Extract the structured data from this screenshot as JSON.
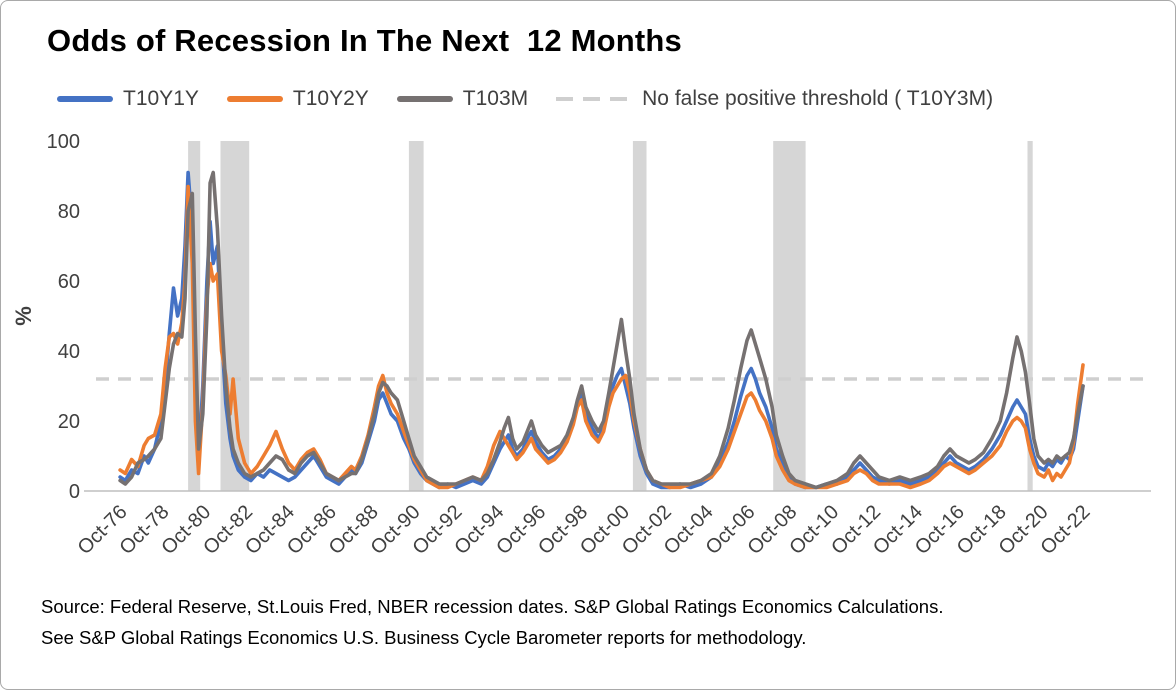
{
  "title": "Odds of Recession In The Next  12 Months",
  "legend": [
    {
      "label": "T10Y1Y",
      "color": "#4472C4",
      "style": "solid"
    },
    {
      "label": "T10Y2Y",
      "color": "#ED7D31",
      "style": "solid"
    },
    {
      "label": "T103M",
      "color": "#767171",
      "style": "solid"
    },
    {
      "label": "No false positive threshold ( T10Y3M)",
      "color": "#cfcfcf",
      "style": "dashed"
    }
  ],
  "source": {
    "line1": "Source: Federal Reserve, St.Louis Fred, NBER recession dates. S&P Global Ratings Economics Calculations.",
    "line2": "See S&P Global Ratings Economics U.S. Business Cycle Barometer reports for methodology."
  },
  "chart_data": {
    "type": "line",
    "title": "Odds of Recession In The Next  12 Months",
    "xlabel": "",
    "ylabel": "%",
    "ylim": [
      0,
      100
    ],
    "grid": false,
    "legend_position": "top",
    "y_ticks": [
      0,
      20,
      40,
      60,
      80,
      100
    ],
    "x_tick_labels": [
      "Oct-76",
      "Oct-78",
      "Oct-80",
      "Oct-82",
      "Oct-84",
      "Oct-86",
      "Oct-88",
      "Oct-90",
      "Oct-92",
      "Oct-94",
      "Oct-96",
      "Oct-98",
      "Oct-00",
      "Oct-02",
      "Oct-04",
      "Oct-06",
      "Oct-08",
      "Oct-10",
      "Oct-12",
      "Oct-14",
      "Oct-16",
      "Oct-18",
      "Oct-20",
      "Oct-22"
    ],
    "x_tick_years": [
      1976.75,
      1978.75,
      1980.75,
      1982.75,
      1984.75,
      1986.75,
      1988.75,
      1990.75,
      1992.75,
      1994.75,
      1996.75,
      1998.75,
      2000.75,
      2002.75,
      2004.75,
      2006.75,
      2008.75,
      2010.75,
      2012.75,
      2014.75,
      2016.75,
      2018.75,
      2020.75,
      2022.75
    ],
    "threshold": {
      "label": "No false positive threshold ( T10Y3M)",
      "value": 32,
      "color": "#cfcfcf"
    },
    "recession_bands": [
      [
        1980.0,
        1980.58
      ],
      [
        1981.55,
        1982.92
      ],
      [
        1990.55,
        1991.25
      ],
      [
        2001.25,
        2001.9
      ],
      [
        2007.95,
        2009.5
      ],
      [
        2020.1,
        2020.35
      ]
    ],
    "band_color": "#d6d6d6",
    "series_meta": [
      {
        "name": "T10Y1Y",
        "color": "#4472C4"
      },
      {
        "name": "T10Y2Y",
        "color": "#ED7D31"
      },
      {
        "name": "T103M",
        "color": "#767171"
      }
    ],
    "columns": [
      "year",
      "T10Y1Y",
      "T10Y2Y",
      "T103M"
    ],
    "points": [
      [
        1976.75,
        4,
        6,
        3
      ],
      [
        1977.0,
        3,
        5,
        2
      ],
      [
        1977.3,
        6,
        9,
        4
      ],
      [
        1977.6,
        5,
        7,
        8
      ],
      [
        1977.9,
        10,
        13,
        9
      ],
      [
        1978.1,
        8,
        15,
        10
      ],
      [
        1978.4,
        12,
        16,
        12
      ],
      [
        1978.7,
        20,
        22,
        15
      ],
      [
        1978.9,
        30,
        35,
        25
      ],
      [
        1979.1,
        45,
        44,
        35
      ],
      [
        1979.3,
        58,
        45,
        42
      ],
      [
        1979.5,
        50,
        42,
        45
      ],
      [
        1979.7,
        55,
        48,
        44
      ],
      [
        1979.85,
        70,
        60,
        55
      ],
      [
        1980.0,
        91,
        87,
        80
      ],
      [
        1980.2,
        75,
        65,
        85
      ],
      [
        1980.35,
        30,
        20,
        45
      ],
      [
        1980.5,
        8,
        5,
        12
      ],
      [
        1980.7,
        30,
        25,
        22
      ],
      [
        1980.9,
        60,
        55,
        50
      ],
      [
        1981.05,
        77,
        65,
        88
      ],
      [
        1981.2,
        65,
        60,
        91
      ],
      [
        1981.4,
        70,
        62,
        75
      ],
      [
        1981.6,
        45,
        40,
        50
      ],
      [
        1981.8,
        25,
        33,
        30
      ],
      [
        1982.0,
        15,
        22,
        18
      ],
      [
        1982.15,
        10,
        32,
        12
      ],
      [
        1982.4,
        6,
        15,
        8
      ],
      [
        1982.7,
        4,
        8,
        5
      ],
      [
        1983.0,
        3,
        5,
        4
      ],
      [
        1983.3,
        5,
        7,
        5
      ],
      [
        1983.6,
        4,
        10,
        6
      ],
      [
        1983.9,
        6,
        13,
        8
      ],
      [
        1984.2,
        5,
        17,
        10
      ],
      [
        1984.5,
        4,
        12,
        9
      ],
      [
        1984.8,
        3,
        8,
        6
      ],
      [
        1985.1,
        4,
        6,
        5
      ],
      [
        1985.4,
        6,
        9,
        8
      ],
      [
        1985.7,
        8,
        11,
        10
      ],
      [
        1986.0,
        10,
        12,
        11
      ],
      [
        1986.3,
        7,
        9,
        8
      ],
      [
        1986.6,
        4,
        5,
        5
      ],
      [
        1986.9,
        3,
        4,
        4
      ],
      [
        1987.2,
        2,
        3,
        3
      ],
      [
        1987.5,
        4,
        5,
        4
      ],
      [
        1987.8,
        6,
        7,
        5
      ],
      [
        1988.0,
        5,
        6,
        5
      ],
      [
        1988.3,
        8,
        10,
        9
      ],
      [
        1988.6,
        14,
        16,
        15
      ],
      [
        1988.9,
        20,
        24,
        22
      ],
      [
        1989.1,
        26,
        30,
        28
      ],
      [
        1989.3,
        28,
        33,
        31
      ],
      [
        1989.5,
        25,
        28,
        30
      ],
      [
        1989.7,
        22,
        25,
        28
      ],
      [
        1990.0,
        20,
        22,
        26
      ],
      [
        1990.3,
        15,
        17,
        20
      ],
      [
        1990.55,
        12,
        13,
        15
      ],
      [
        1990.8,
        8,
        9,
        10
      ],
      [
        1991.1,
        5,
        6,
        7
      ],
      [
        1991.4,
        3,
        3,
        4
      ],
      [
        1991.7,
        2,
        2,
        3
      ],
      [
        1992.0,
        1,
        1,
        2
      ],
      [
        1992.4,
        2,
        1,
        2
      ],
      [
        1992.8,
        1,
        2,
        2
      ],
      [
        1993.2,
        2,
        3,
        3
      ],
      [
        1993.6,
        3,
        4,
        4
      ],
      [
        1994.0,
        2,
        3,
        3
      ],
      [
        1994.3,
        4,
        7,
        5
      ],
      [
        1994.6,
        8,
        13,
        9
      ],
      [
        1994.9,
        12,
        17,
        14
      ],
      [
        1995.1,
        14,
        15,
        18
      ],
      [
        1995.3,
        16,
        13,
        21
      ],
      [
        1995.5,
        12,
        11,
        15
      ],
      [
        1995.7,
        10,
        9,
        12
      ],
      [
        1996.0,
        12,
        11,
        14
      ],
      [
        1996.2,
        15,
        13,
        17
      ],
      [
        1996.4,
        17,
        15,
        20
      ],
      [
        1996.6,
        14,
        12,
        16
      ],
      [
        1996.9,
        11,
        10,
        13
      ],
      [
        1997.2,
        9,
        8,
        11
      ],
      [
        1997.5,
        10,
        9,
        12
      ],
      [
        1997.8,
        12,
        11,
        13
      ],
      [
        1998.1,
        15,
        14,
        16
      ],
      [
        1998.4,
        20,
        19,
        21
      ],
      [
        1998.6,
        25,
        24,
        26
      ],
      [
        1998.8,
        28,
        26,
        30
      ],
      [
        1999.0,
        22,
        20,
        24
      ],
      [
        1999.3,
        18,
        16,
        20
      ],
      [
        1999.6,
        15,
        14,
        17
      ],
      [
        1999.85,
        18,
        17,
        20
      ],
      [
        2000.1,
        25,
        24,
        28
      ],
      [
        2000.3,
        30,
        28,
        35
      ],
      [
        2000.5,
        33,
        30,
        42
      ],
      [
        2000.7,
        35,
        32,
        49
      ],
      [
        2000.9,
        30,
        33,
        40
      ],
      [
        2001.1,
        25,
        28,
        32
      ],
      [
        2001.3,
        18,
        20,
        22
      ],
      [
        2001.6,
        10,
        12,
        12
      ],
      [
        2001.9,
        5,
        6,
        6
      ],
      [
        2002.2,
        2,
        3,
        3
      ],
      [
        2002.6,
        1,
        2,
        2
      ],
      [
        2003.0,
        1,
        1,
        2
      ],
      [
        2003.5,
        2,
        1,
        2
      ],
      [
        2004.0,
        1,
        2,
        2
      ],
      [
        2004.5,
        2,
        3,
        3
      ],
      [
        2005.0,
        4,
        4,
        5
      ],
      [
        2005.4,
        8,
        7,
        10
      ],
      [
        2005.8,
        14,
        12,
        18
      ],
      [
        2006.1,
        20,
        17,
        26
      ],
      [
        2006.4,
        27,
        22,
        35
      ],
      [
        2006.7,
        33,
        27,
        43
      ],
      [
        2006.9,
        35,
        28,
        46
      ],
      [
        2007.1,
        32,
        26,
        42
      ],
      [
        2007.3,
        28,
        23,
        38
      ],
      [
        2007.6,
        24,
        20,
        32
      ],
      [
        2007.9,
        18,
        15,
        24
      ],
      [
        2008.1,
        12,
        10,
        16
      ],
      [
        2008.4,
        8,
        6,
        10
      ],
      [
        2008.7,
        4,
        3,
        5
      ],
      [
        2009.0,
        2,
        2,
        3
      ],
      [
        2009.5,
        1,
        1,
        2
      ],
      [
        2010.0,
        1,
        1,
        1
      ],
      [
        2010.5,
        2,
        1,
        2
      ],
      [
        2011.0,
        2,
        2,
        3
      ],
      [
        2011.5,
        4,
        3,
        5
      ],
      [
        2011.8,
        6,
        5,
        8
      ],
      [
        2012.1,
        8,
        6,
        10
      ],
      [
        2012.4,
        6,
        5,
        8
      ],
      [
        2012.7,
        4,
        3,
        6
      ],
      [
        2013.0,
        3,
        2,
        4
      ],
      [
        2013.5,
        2,
        2,
        3
      ],
      [
        2014.0,
        3,
        2,
        4
      ],
      [
        2014.5,
        2,
        1,
        3
      ],
      [
        2015.0,
        3,
        2,
        4
      ],
      [
        2015.4,
        4,
        3,
        5
      ],
      [
        2015.8,
        6,
        5,
        7
      ],
      [
        2016.1,
        8,
        7,
        10
      ],
      [
        2016.4,
        10,
        8,
        12
      ],
      [
        2016.7,
        8,
        7,
        10
      ],
      [
        2017.0,
        7,
        6,
        9
      ],
      [
        2017.3,
        6,
        5,
        8
      ],
      [
        2017.6,
        7,
        6,
        9
      ],
      [
        2018.0,
        9,
        8,
        11
      ],
      [
        2018.4,
        12,
        10,
        15
      ],
      [
        2018.8,
        16,
        13,
        20
      ],
      [
        2019.1,
        20,
        17,
        28
      ],
      [
        2019.4,
        24,
        20,
        38
      ],
      [
        2019.6,
        26,
        21,
        44
      ],
      [
        2019.8,
        24,
        20,
        40
      ],
      [
        2020.0,
        22,
        18,
        34
      ],
      [
        2020.2,
        15,
        12,
        25
      ],
      [
        2020.4,
        10,
        8,
        15
      ],
      [
        2020.6,
        7,
        5,
        10
      ],
      [
        2020.9,
        6,
        4,
        8
      ],
      [
        2021.1,
        8,
        6,
        9
      ],
      [
        2021.3,
        7,
        3,
        8
      ],
      [
        2021.5,
        9,
        5,
        10
      ],
      [
        2021.7,
        8,
        4,
        9
      ],
      [
        2021.9,
        10,
        6,
        10
      ],
      [
        2022.1,
        9,
        8,
        11
      ],
      [
        2022.3,
        12,
        14,
        15
      ],
      [
        2022.5,
        20,
        25,
        22
      ],
      [
        2022.75,
        30,
        36,
        30
      ]
    ]
  }
}
